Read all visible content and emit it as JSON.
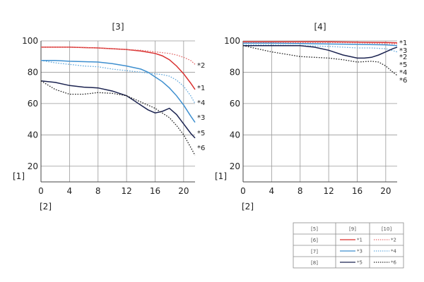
{
  "colors": {
    "red": "#d9302f",
    "red_light": "#e46a6a",
    "blue": "#3e8fcf",
    "blue_light": "#62a8dc",
    "navy": "#1b2350",
    "black": "#222222"
  },
  "chart_data": [
    {
      "type": "line",
      "title": "[3]",
      "xlabel": "[2]",
      "ylabel": "[1]",
      "xlim": [
        0,
        21.6
      ],
      "ylim": [
        10,
        100
      ],
      "xticks": [
        "0",
        "4",
        "8",
        "12",
        "16",
        "20"
      ],
      "yticks": [
        "20",
        "40",
        "60",
        "80",
        "100"
      ],
      "grid": true,
      "series": [
        {
          "name": "*1",
          "color": "red",
          "dash": "solid",
          "x": [
            0,
            4,
            8,
            12,
            14,
            16,
            17,
            18,
            19,
            20,
            21,
            21.6
          ],
          "y": [
            96,
            96,
            95.5,
            94.5,
            93.5,
            92,
            90.5,
            88,
            84,
            79,
            73,
            69
          ]
        },
        {
          "name": "*2",
          "color": "red_light",
          "dash": "dotted",
          "x": [
            0,
            4,
            8,
            12,
            14,
            16,
            18,
            19,
            20,
            21,
            21.6
          ],
          "y": [
            96,
            96,
            95.5,
            94.5,
            94,
            93,
            92,
            91,
            89.5,
            87.5,
            85
          ]
        },
        {
          "name": "*3",
          "color": "blue",
          "dash": "solid",
          "x": [
            0,
            2,
            4,
            8,
            10,
            12,
            14,
            15,
            16,
            17,
            18,
            19,
            20,
            21,
            21.6
          ],
          "y": [
            87.5,
            87.5,
            87,
            86.5,
            85.5,
            84,
            82,
            80,
            77,
            74,
            70,
            65,
            59,
            52,
            48
          ]
        },
        {
          "name": "*4",
          "color": "blue_light",
          "dash": "dotted",
          "x": [
            0,
            2,
            4,
            6,
            8,
            10,
            12,
            14,
            16,
            17,
            18,
            19,
            20,
            21,
            21.6
          ],
          "y": [
            87.5,
            86,
            85,
            84,
            83.5,
            82,
            81,
            80,
            79,
            78.5,
            77.5,
            75,
            71,
            65,
            60
          ]
        },
        {
          "name": "*5",
          "color": "navy",
          "dash": "solid",
          "x": [
            0,
            2,
            4,
            6,
            8,
            10,
            12,
            13,
            14,
            15,
            16,
            17,
            18,
            19,
            20,
            21,
            21.6
          ],
          "y": [
            74.5,
            73.5,
            71.5,
            70.5,
            70,
            68,
            65,
            62,
            59,
            56,
            54,
            55,
            57,
            53,
            47,
            41,
            38
          ]
        },
        {
          "name": "*6",
          "color": "black",
          "dash": "dotted",
          "x": [
            0,
            2,
            4,
            6,
            8,
            10,
            12,
            14,
            16,
            18,
            19,
            20,
            21,
            21.6
          ],
          "y": [
            74.5,
            69,
            66,
            66,
            67,
            66.5,
            65,
            61,
            57,
            51,
            46,
            40,
            32,
            27
          ]
        }
      ]
    },
    {
      "type": "line",
      "title": "[4]",
      "xlabel": "[2]",
      "ylabel": "[1]",
      "xlim": [
        0,
        21.6
      ],
      "ylim": [
        10,
        100
      ],
      "xticks": [
        "0",
        "4",
        "8",
        "12",
        "16",
        "20"
      ],
      "yticks": [
        "20",
        "40",
        "60",
        "80",
        "100"
      ],
      "grid": true,
      "series": [
        {
          "name": "*1",
          "color": "red",
          "dash": "solid",
          "x": [
            0,
            4,
            8,
            12,
            16,
            20,
            21.6
          ],
          "y": [
            99.5,
            99.5,
            99.5,
            99.4,
            99.2,
            99,
            98.8
          ]
        },
        {
          "name": "*2",
          "color": "red_light",
          "dash": "dotted",
          "x": [
            0,
            4,
            8,
            12,
            16,
            20,
            21.6
          ],
          "y": [
            99,
            99,
            99,
            99,
            98.8,
            98.2,
            98
          ]
        },
        {
          "name": "*3",
          "color": "blue",
          "dash": "solid",
          "x": [
            0,
            4,
            8,
            12,
            16,
            20,
            21.6
          ],
          "y": [
            98.5,
            98.5,
            98.3,
            98,
            97.8,
            97.5,
            97
          ]
        },
        {
          "name": "*4",
          "color": "blue_light",
          "dash": "dotted",
          "x": [
            0,
            4,
            8,
            12,
            14,
            16,
            18,
            20,
            21.6
          ],
          "y": [
            97.5,
            97.5,
            97,
            96.5,
            96,
            95.5,
            95.5,
            95,
            93
          ]
        },
        {
          "name": "*5",
          "color": "navy",
          "dash": "solid",
          "x": [
            0,
            4,
            8,
            10,
            12,
            14,
            16,
            17,
            18,
            19,
            20,
            21,
            21.6
          ],
          "y": [
            97,
            97,
            97,
            96,
            94,
            91,
            89,
            89,
            89.5,
            91,
            93,
            95,
            96
          ]
        },
        {
          "name": "*6",
          "color": "black",
          "dash": "dotted",
          "x": [
            0,
            4,
            8,
            12,
            14,
            16,
            18,
            19,
            20,
            21,
            21.6
          ],
          "y": [
            97,
            93,
            90,
            89,
            88,
            86.5,
            87,
            86.5,
            84,
            80,
            78
          ]
        }
      ]
    }
  ],
  "legend": {
    "header": [
      "[5]",
      "[9]",
      "[10]"
    ],
    "rows": [
      {
        "label": "[6]",
        "solid_name": "*1",
        "dotted_name": "*2",
        "solid_color": "red",
        "dotted_color": "red_light"
      },
      {
        "label": "[7]",
        "solid_name": "*3",
        "dotted_name": "*4",
        "solid_color": "blue",
        "dotted_color": "blue_light"
      },
      {
        "label": "[8]",
        "solid_name": "*5",
        "dotted_name": "*6",
        "solid_color": "navy",
        "dotted_color": "black"
      }
    ]
  }
}
